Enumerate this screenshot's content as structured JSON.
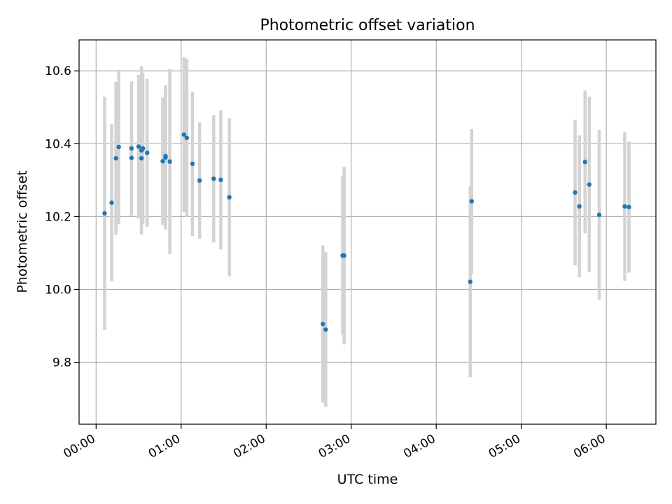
{
  "chart_data": {
    "type": "scatter",
    "title": "Photometric offset variation",
    "xlabel": "UTC time",
    "ylabel": "Photometric offset",
    "x_unit": "time of day (HH:MM)",
    "xlim": [
      "-00:12",
      "06:35"
    ],
    "ylim": [
      9.63,
      10.685
    ],
    "x_ticks": [
      "00:00",
      "01:00",
      "02:00",
      "03:00",
      "04:00",
      "05:00",
      "06:00"
    ],
    "y_ticks": [
      "9.8",
      "10.0",
      "10.2",
      "10.4",
      "10.6"
    ],
    "grid": true,
    "legend": "none",
    "colors": {
      "point": "#1f77b4",
      "errorbar": "#d3d3d3",
      "grid": "#b0b0b0"
    },
    "points": [
      {
        "x": "00:06",
        "y": 10.209,
        "err": 0.32
      },
      {
        "x": "00:11",
        "y": 10.238,
        "err": 0.216
      },
      {
        "x": "00:14",
        "y": 10.36,
        "err": 0.21
      },
      {
        "x": "00:16",
        "y": 10.391,
        "err": 0.212
      },
      {
        "x": "00:25",
        "y": 10.361,
        "err": 0.155
      },
      {
        "x": "00:25",
        "y": 10.387,
        "err": 0.184
      },
      {
        "x": "00:30",
        "y": 10.392,
        "err": 0.197
      },
      {
        "x": "00:32",
        "y": 10.36,
        "err": 0.202
      },
      {
        "x": "00:32",
        "y": 10.382,
        "err": 0.231
      },
      {
        "x": "00:33",
        "y": 10.387,
        "err": 0.208
      },
      {
        "x": "00:36",
        "y": 10.375,
        "err": 0.203
      },
      {
        "x": "00:47",
        "y": 10.352,
        "err": 0.175
      },
      {
        "x": "00:49",
        "y": 10.362,
        "err": 0.198
      },
      {
        "x": "00:49",
        "y": 10.366,
        "err": 0.175
      },
      {
        "x": "00:52",
        "y": 10.351,
        "err": 0.254
      },
      {
        "x": "01:02",
        "y": 10.425,
        "err": 0.213
      },
      {
        "x": "01:04",
        "y": 10.416,
        "err": 0.217
      },
      {
        "x": "01:08",
        "y": 10.345,
        "err": 0.198
      },
      {
        "x": "01:13",
        "y": 10.299,
        "err": 0.16
      },
      {
        "x": "01:23",
        "y": 10.304,
        "err": 0.175
      },
      {
        "x": "01:28",
        "y": 10.301,
        "err": 0.191
      },
      {
        "x": "01:34",
        "y": 10.253,
        "err": 0.217
      },
      {
        "x": "02:40",
        "y": 9.905,
        "err": 0.216
      },
      {
        "x": "02:42",
        "y": 9.89,
        "err": 0.212
      },
      {
        "x": "02:54",
        "y": 10.093,
        "err": 0.218
      },
      {
        "x": "02:55",
        "y": 10.093,
        "err": 0.244
      },
      {
        "x": "04:24",
        "y": 10.021,
        "err": 0.262
      },
      {
        "x": "04:25",
        "y": 10.242,
        "err": 0.199
      },
      {
        "x": "05:38",
        "y": 10.266,
        "err": 0.2
      },
      {
        "x": "05:41",
        "y": 10.228,
        "err": 0.195
      },
      {
        "x": "05:45",
        "y": 10.35,
        "err": 0.196
      },
      {
        "x": "05:48",
        "y": 10.288,
        "err": 0.241
      },
      {
        "x": "05:55",
        "y": 10.205,
        "err": 0.233
      },
      {
        "x": "06:13",
        "y": 10.228,
        "err": 0.204
      },
      {
        "x": "06:16",
        "y": 10.226,
        "err": 0.18
      }
    ]
  }
}
